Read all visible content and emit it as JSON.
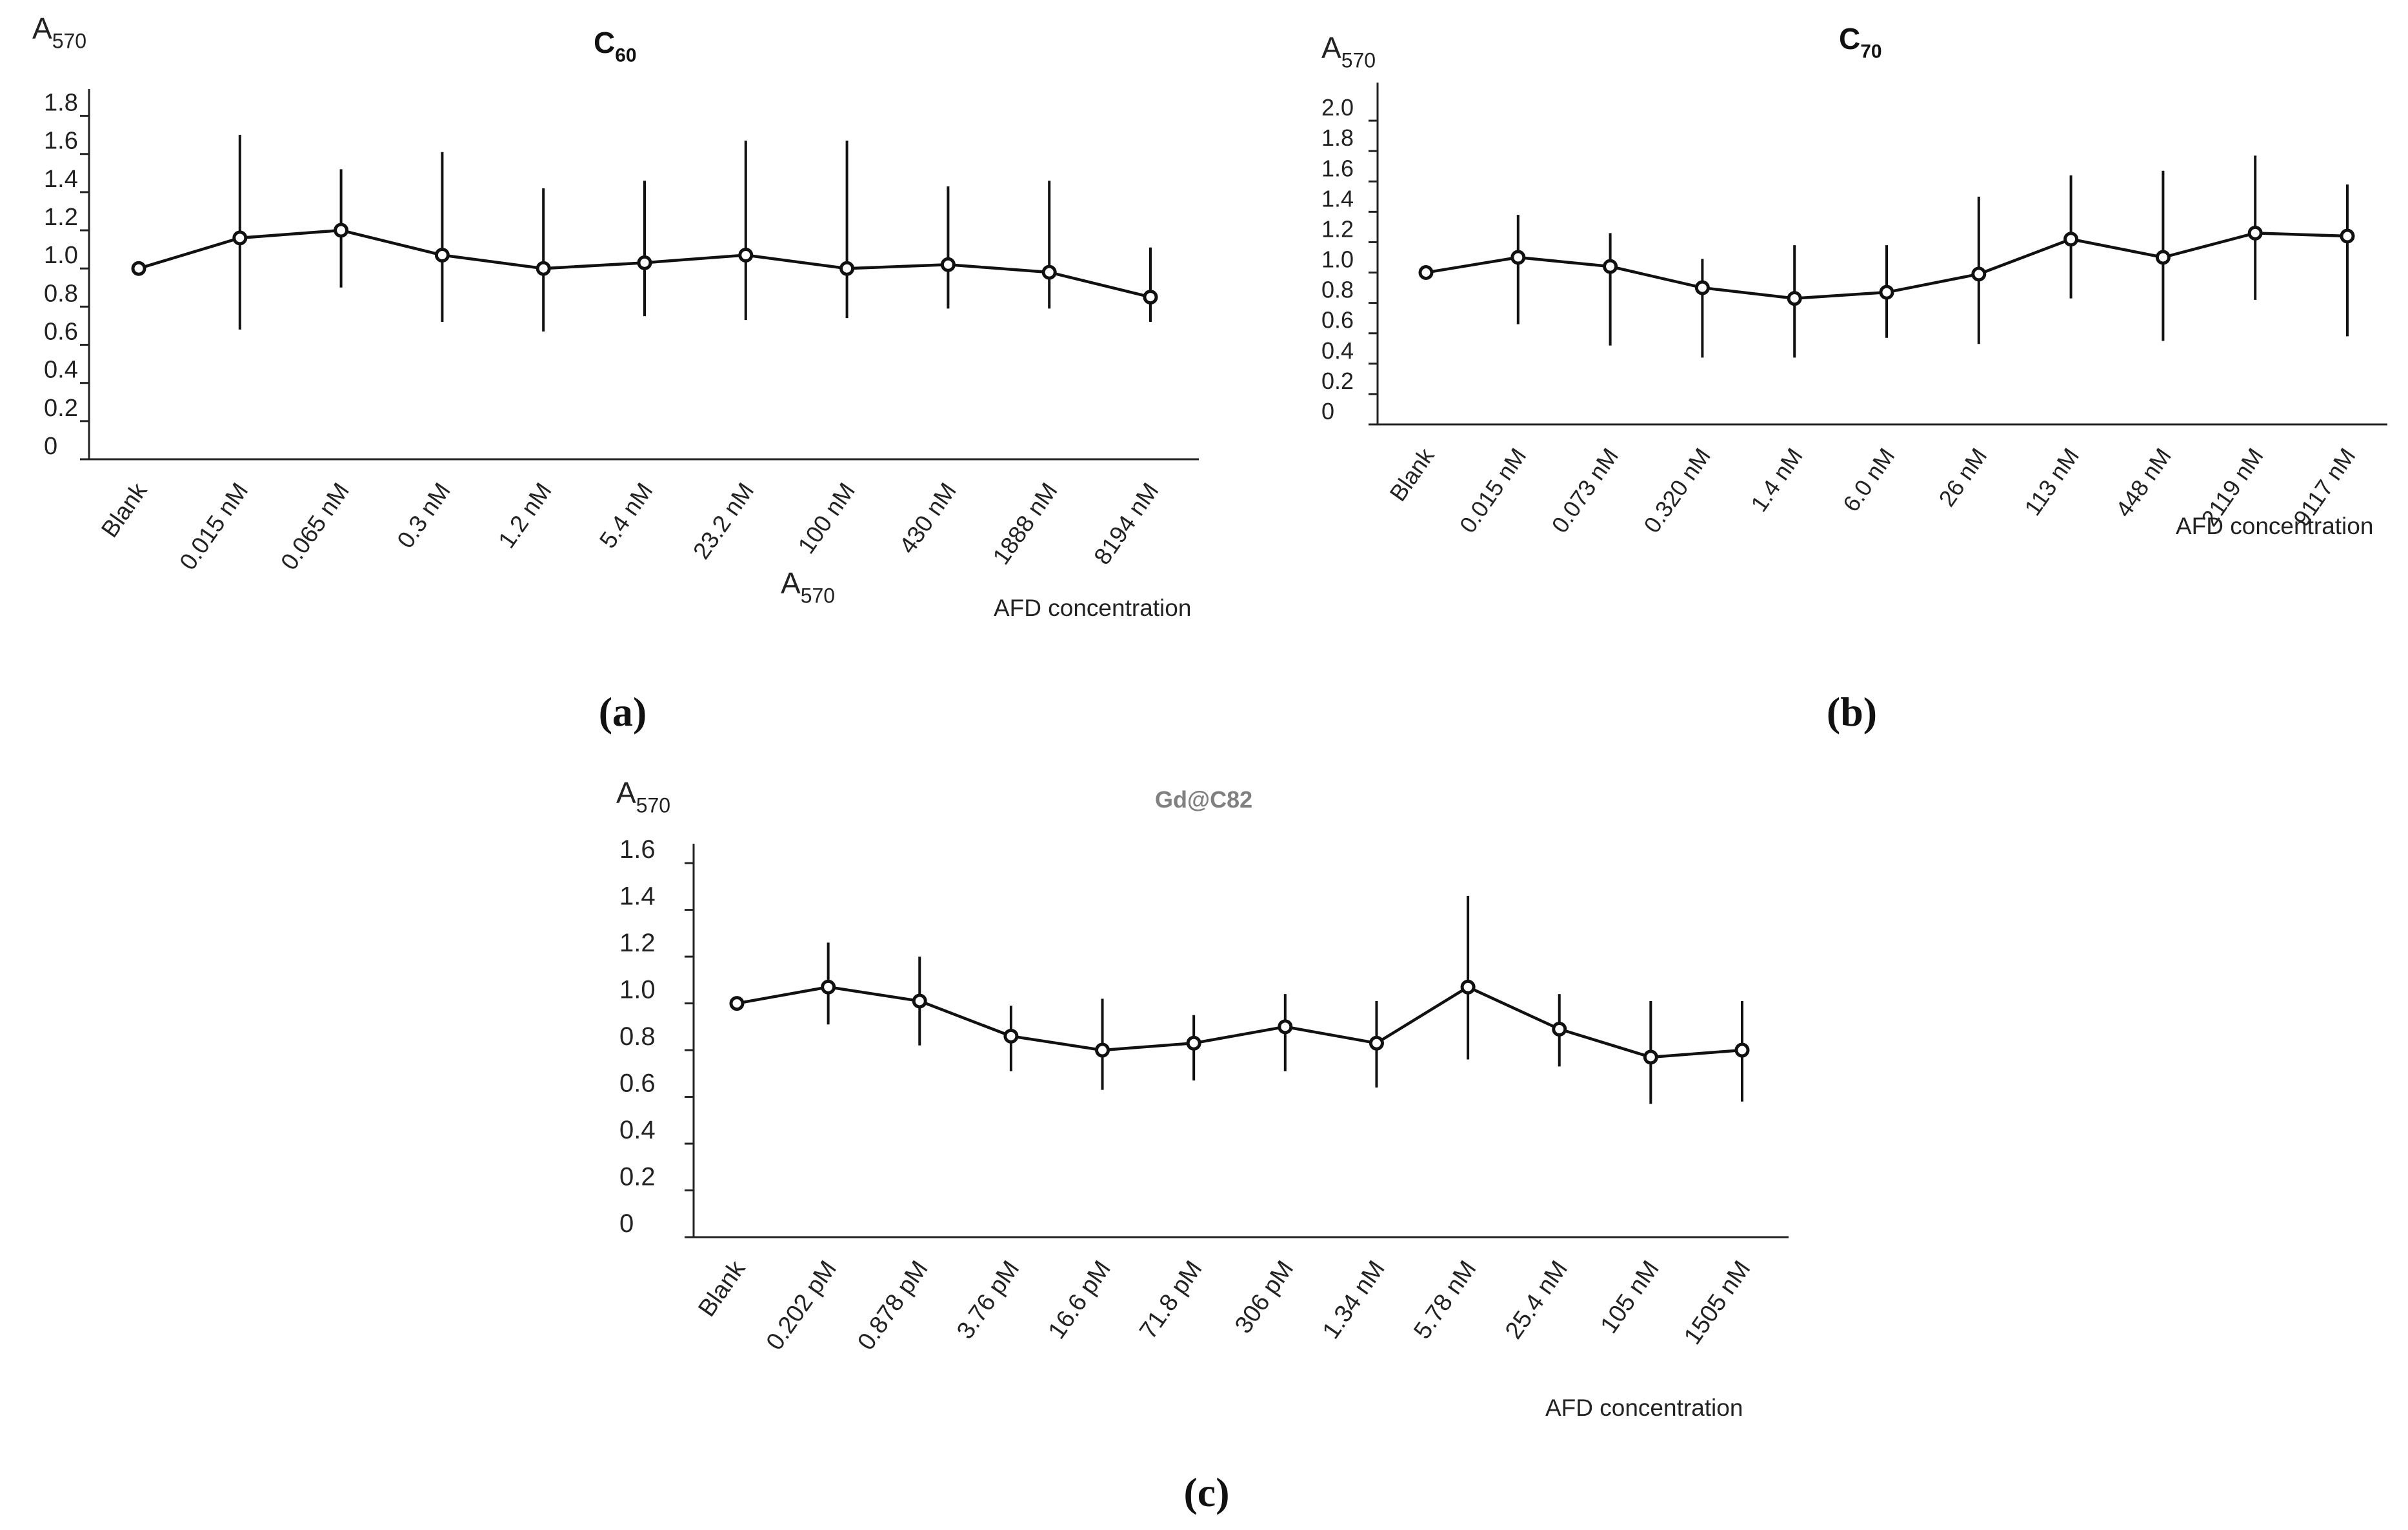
{
  "chart_data": [
    {
      "type": "line",
      "title_main": "C",
      "title_sub": "60",
      "ylabel_main": "A",
      "ylabel_sub": "570",
      "stray_label_main": "A",
      "stray_label_sub": "570",
      "xlabel": "AFD concentration",
      "panel_label": "(a)",
      "categories": [
        "Blank",
        "0.015 nM",
        "0.065 nM",
        "0.3 nM",
        "1.2 nM",
        "5.4 nM",
        "23.2 nM",
        "100 nM",
        "430 nM",
        "1888 nM",
        "8194 nM"
      ],
      "values": [
        1.0,
        1.16,
        1.2,
        1.07,
        1.0,
        1.03,
        1.07,
        1.0,
        1.02,
        0.98,
        0.85
      ],
      "err_low": [
        1.0,
        0.68,
        0.9,
        0.72,
        0.67,
        0.75,
        0.73,
        0.74,
        0.79,
        0.79,
        0.72
      ],
      "err_high": [
        1.0,
        1.7,
        1.52,
        1.61,
        1.42,
        1.46,
        1.67,
        1.67,
        1.43,
        1.46,
        1.11
      ],
      "yticks": [
        "0",
        "0.2",
        "0.4",
        "0.6",
        "0.8",
        "1.0",
        "1.2",
        "1.4",
        "1.6",
        "1.8"
      ],
      "ylim": [
        0,
        1.9
      ],
      "title_bold": true
    },
    {
      "type": "line",
      "title_main": "C",
      "title_sub": "70",
      "ylabel_main": "A",
      "ylabel_sub": "570",
      "xlabel": "AFD concentration",
      "panel_label": "(b)",
      "categories": [
        "Blank",
        "0.015 nM",
        "0.073 nM",
        "0.320 nM",
        "1.4 nM",
        "6.0 nM",
        "26 nM",
        "113 nM",
        "448 nM",
        "2119 nM",
        "9117 nM"
      ],
      "values": [
        1.0,
        1.1,
        1.04,
        0.9,
        0.83,
        0.87,
        0.99,
        1.22,
        1.1,
        1.26,
        1.24
      ],
      "err_low": [
        1.0,
        0.66,
        0.52,
        0.44,
        0.44,
        0.57,
        0.53,
        0.83,
        0.55,
        0.82,
        0.58
      ],
      "err_high": [
        1.0,
        1.38,
        1.26,
        1.09,
        1.18,
        1.18,
        1.5,
        1.64,
        1.67,
        1.77,
        1.58
      ],
      "yticks": [
        "0",
        "0.2",
        "0.4",
        "0.6",
        "0.8",
        "1.0",
        "1.2",
        "1.4",
        "1.6",
        "1.8",
        "2.0"
      ],
      "ylim": [
        0,
        2.2
      ],
      "title_bold": true
    },
    {
      "type": "line",
      "title_main": "Gd@C82",
      "title_sub": "",
      "ylabel_main": "A",
      "ylabel_sub": "570",
      "xlabel": "AFD concentration",
      "panel_label": "(c)",
      "categories": [
        "Blank",
        "0.202 pM",
        "0.878 pM",
        "3.76 pM",
        "16.6 pM",
        "71.8 pM",
        "306 pM",
        "1.34 nM",
        "5.78 nM",
        "25.4 nM",
        "105 nM",
        "1505 nM"
      ],
      "values": [
        1.0,
        1.07,
        1.01,
        0.86,
        0.8,
        0.83,
        0.9,
        0.83,
        1.07,
        0.89,
        0.77,
        0.8
      ],
      "err_low": [
        1.0,
        0.91,
        0.82,
        0.71,
        0.63,
        0.67,
        0.71,
        0.64,
        0.76,
        0.73,
        0.57,
        0.58
      ],
      "err_high": [
        1.0,
        1.26,
        1.2,
        0.99,
        1.02,
        0.95,
        1.04,
        1.01,
        1.46,
        1.04,
        1.01,
        1.01
      ],
      "yticks": [
        "0",
        "0.2",
        "0.4",
        "0.6",
        "0.8",
        "1.0",
        "1.2",
        "1.4",
        "1.6"
      ],
      "ylim": [
        0,
        1.65
      ],
      "title_bold": true,
      "title_color": "#808080"
    }
  ]
}
